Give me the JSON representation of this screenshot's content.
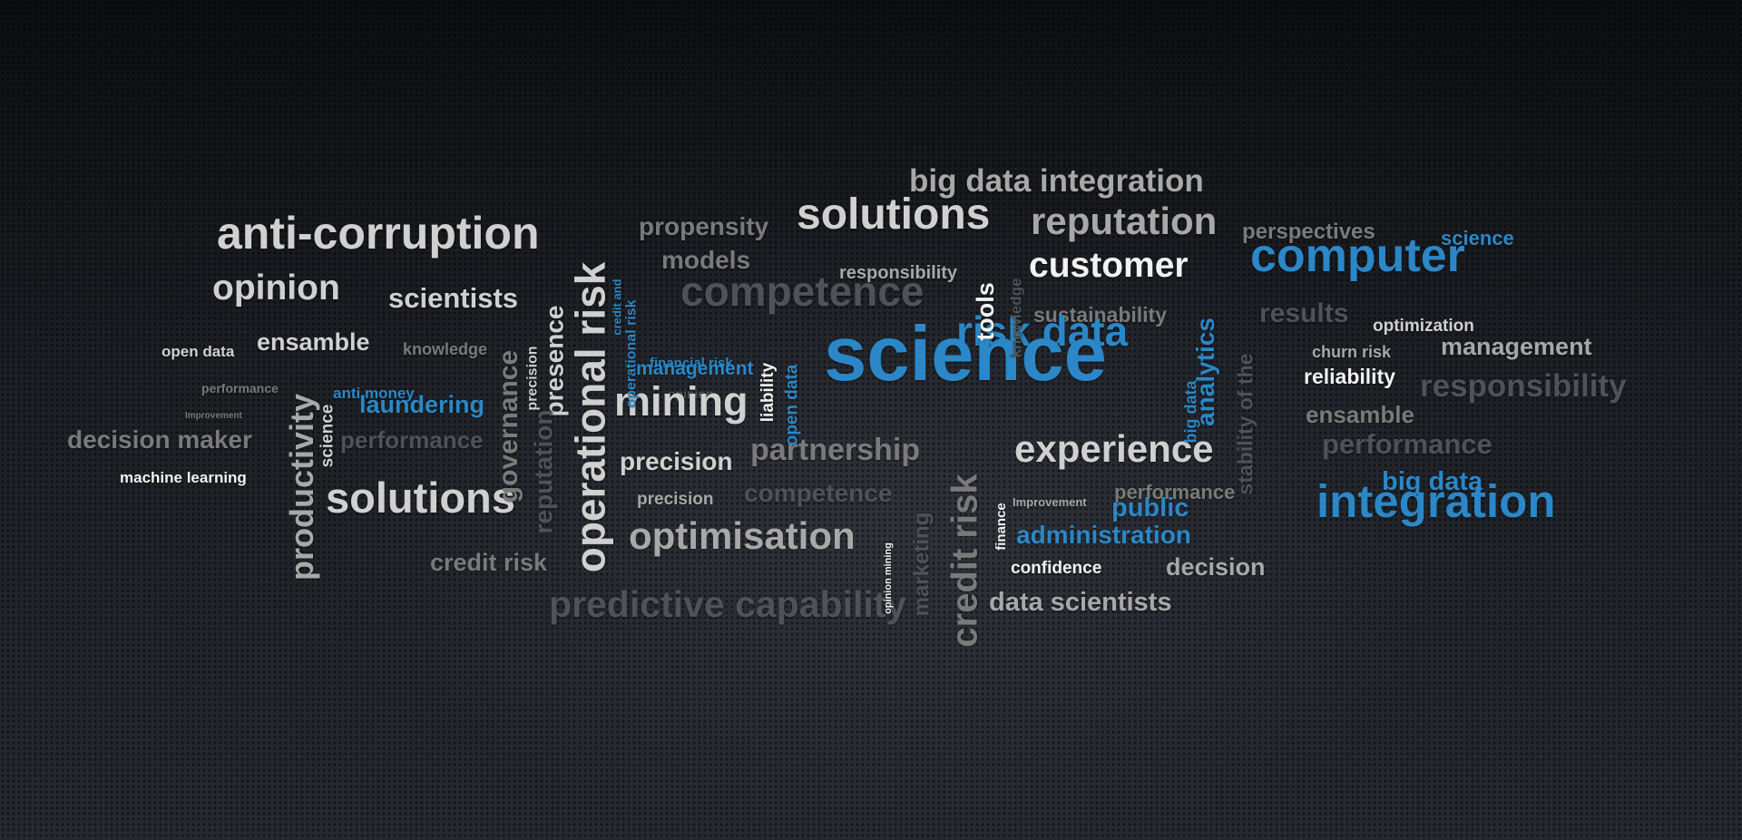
{
  "colors": {
    "white": "#f2f2f2",
    "light": "#d0d0d0",
    "gray": "#a8a8a8",
    "mid": "#7a7a7a",
    "dark": "#4f5257",
    "blue": "#2b87c7"
  },
  "words": [
    {
      "text": "big data integration",
      "tone": "gray",
      "weight": "medium"
    },
    {
      "text": "anti-corruption",
      "tone": "light",
      "weight": "large"
    },
    {
      "text": "propensity",
      "tone": "mid",
      "weight": "medium"
    },
    {
      "text": "solutions",
      "tone": "light",
      "weight": "large"
    },
    {
      "text": "reputation",
      "tone": "gray",
      "weight": "large"
    },
    {
      "text": "perspectives",
      "tone": "mid",
      "weight": "small"
    },
    {
      "text": "science",
      "tone": "blue",
      "weight": "small"
    },
    {
      "text": "models",
      "tone": "mid",
      "weight": "medium"
    },
    {
      "text": "responsibility",
      "tone": "gray",
      "weight": "small"
    },
    {
      "text": "customer",
      "tone": "white",
      "weight": "large"
    },
    {
      "text": "computer",
      "tone": "blue",
      "weight": "large"
    },
    {
      "text": "opinion",
      "tone": "light",
      "weight": "large"
    },
    {
      "text": "scientists",
      "tone": "light",
      "weight": "medium"
    },
    {
      "text": "competence",
      "tone": "dark",
      "weight": "large"
    },
    {
      "text": "sustainability",
      "tone": "mid",
      "weight": "small"
    },
    {
      "text": "results",
      "tone": "dark",
      "weight": "medium"
    },
    {
      "text": "optimization",
      "tone": "light",
      "weight": "small"
    },
    {
      "text": "open data",
      "tone": "light",
      "weight": "small"
    },
    {
      "text": "ensamble",
      "tone": "light",
      "weight": "medium"
    },
    {
      "text": "knowledge",
      "tone": "mid",
      "weight": "small"
    },
    {
      "text": "risk data",
      "tone": "blue",
      "weight": "large"
    },
    {
      "text": "churn risk",
      "tone": "gray",
      "weight": "small"
    },
    {
      "text": "management",
      "tone": "gray",
      "weight": "medium"
    },
    {
      "text": "performance",
      "tone": "mid",
      "weight": "tiny"
    },
    {
      "text": "anti money",
      "tone": "blue",
      "weight": "small"
    },
    {
      "text": "financial risk",
      "tone": "blue",
      "weight": "small"
    },
    {
      "text": "management",
      "tone": "blue",
      "weight": "small"
    },
    {
      "text": "reliability",
      "tone": "white",
      "weight": "small"
    },
    {
      "text": "laundering",
      "tone": "blue",
      "weight": "medium"
    },
    {
      "text": "opinion",
      "tone": "dark",
      "weight": "tiny"
    },
    {
      "text": "science",
      "tone": "blue",
      "weight": "huge"
    },
    {
      "text": "Improvement",
      "tone": "mid",
      "weight": "tiny"
    },
    {
      "text": "mining",
      "tone": "light",
      "weight": "large"
    },
    {
      "text": "responsibility",
      "tone": "dark",
      "weight": "large"
    },
    {
      "text": "ensamble",
      "tone": "mid",
      "weight": "medium"
    },
    {
      "text": "decision maker",
      "tone": "mid",
      "weight": "medium"
    },
    {
      "text": "performance",
      "tone": "dark",
      "weight": "medium"
    },
    {
      "text": "performance",
      "tone": "dark",
      "weight": "large"
    },
    {
      "text": "machine learning",
      "tone": "white",
      "weight": "small"
    },
    {
      "text": "precision",
      "tone": "light",
      "weight": "medium"
    },
    {
      "text": "partnership",
      "tone": "mid",
      "weight": "large"
    },
    {
      "text": "experience",
      "tone": "light",
      "weight": "large"
    },
    {
      "text": "big data",
      "tone": "blue",
      "weight": "medium"
    },
    {
      "text": "precision",
      "tone": "gray",
      "weight": "small"
    },
    {
      "text": "competence",
      "tone": "dark",
      "weight": "medium"
    },
    {
      "text": "Improvement",
      "tone": "gray",
      "weight": "tiny"
    },
    {
      "text": "performance",
      "tone": "mid",
      "weight": "small"
    },
    {
      "text": "solutions",
      "tone": "light",
      "weight": "large"
    },
    {
      "text": "public",
      "tone": "blue",
      "weight": "medium"
    },
    {
      "text": "integration",
      "tone": "blue",
      "weight": "large"
    },
    {
      "text": "administration",
      "tone": "blue",
      "weight": "medium"
    },
    {
      "text": "optimisation",
      "tone": "gray",
      "weight": "large"
    },
    {
      "text": "credit risk",
      "tone": "mid",
      "weight": "medium"
    },
    {
      "text": "confidence",
      "tone": "white",
      "weight": "small"
    },
    {
      "text": "decision",
      "tone": "gray",
      "weight": "medium"
    },
    {
      "text": "data scientists",
      "tone": "gray",
      "weight": "medium"
    },
    {
      "text": "predictive capability",
      "tone": "dark",
      "weight": "large"
    },
    {
      "text": "operational risk",
      "tone": "light",
      "weight": "vertical-large"
    },
    {
      "text": "presence",
      "tone": "light",
      "weight": "vertical-medium"
    },
    {
      "text": "precision",
      "tone": "light",
      "weight": "vertical-small"
    },
    {
      "text": "governance",
      "tone": "mid",
      "weight": "vertical-medium"
    },
    {
      "text": "reputation",
      "tone": "dark",
      "weight": "vertical-medium"
    },
    {
      "text": "productivity",
      "tone": "gray",
      "weight": "vertical-large"
    },
    {
      "text": "science",
      "tone": "light",
      "weight": "vertical-small"
    },
    {
      "text": "credit and",
      "tone": "blue",
      "weight": "vertical-small"
    },
    {
      "text": "operational risk",
      "tone": "blue",
      "weight": "vertical-small"
    },
    {
      "text": "liability",
      "tone": "white",
      "weight": "vertical-small"
    },
    {
      "text": "open data",
      "tone": "blue",
      "weight": "vertical-small"
    },
    {
      "text": "tools",
      "tone": "white",
      "weight": "vertical-medium"
    },
    {
      "text": "knowledge",
      "tone": "dark",
      "weight": "vertical-small"
    },
    {
      "text": "analytics",
      "tone": "blue",
      "weight": "vertical-medium"
    },
    {
      "text": "big data",
      "tone": "blue",
      "weight": "vertical-small"
    },
    {
      "text": "stability of the",
      "tone": "dark",
      "weight": "vertical-medium"
    },
    {
      "text": "finance",
      "tone": "white",
      "weight": "vertical-medium"
    },
    {
      "text": "opinion mining",
      "tone": "white",
      "weight": "vertical-small"
    },
    {
      "text": "marketing",
      "tone": "dark",
      "weight": "vertical-small"
    },
    {
      "text": "credit risk",
      "tone": "mid",
      "weight": "vertical-medium"
    },
    {
      "text": "marketing",
      "tone": "dark",
      "weight": "vertical-large"
    }
  ]
}
